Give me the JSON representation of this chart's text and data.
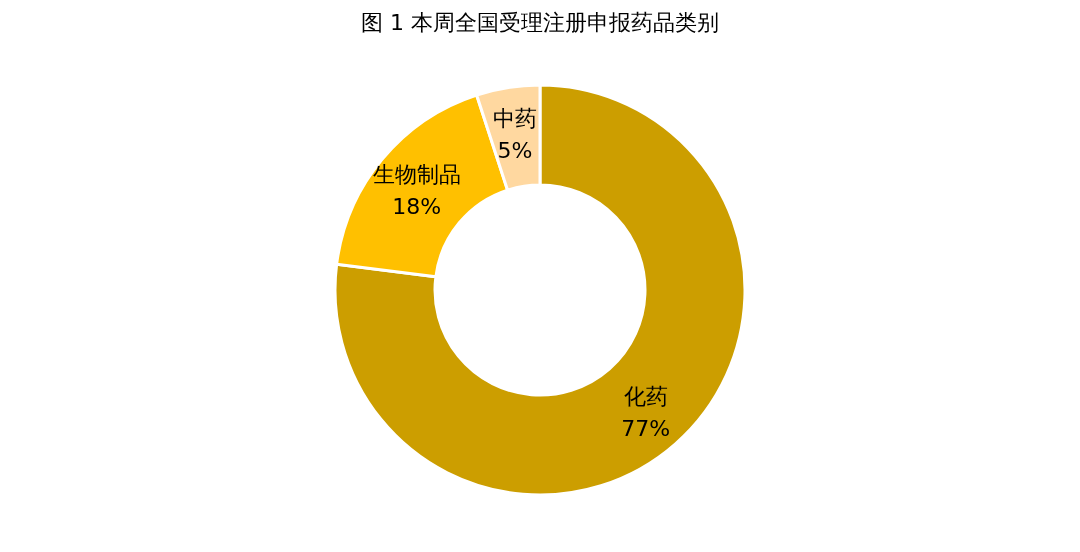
{
  "chart_data": {
    "type": "donut",
    "title": "图 1  本周全国受理注册申报药品类别",
    "categories": [
      "化药",
      "生物制品",
      "中药"
    ],
    "values": [
      77,
      18,
      5
    ],
    "colors": [
      "#cc9e00",
      "#ffc000",
      "#ffd8a0"
    ],
    "value_labels": [
      "77%",
      "18%",
      "5%"
    ]
  }
}
